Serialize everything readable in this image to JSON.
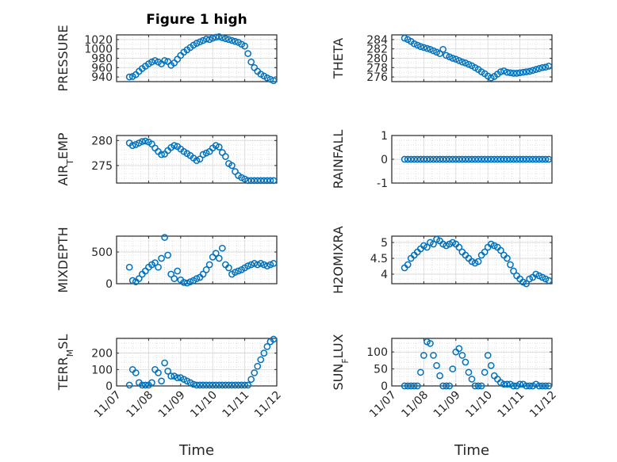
{
  "figure": {
    "title": "Figure 1 high",
    "bg": "#ffffff"
  },
  "style": {
    "marker_color": "#0072bd",
    "axis_color": "#262626",
    "grid_color": "#d9d9d9"
  },
  "chart_data": [
    {
      "type": "scatter",
      "title": "Figure 1 high",
      "ylabel": "PRESSURE",
      "xlabel": "",
      "xlim": [
        0,
        5
      ],
      "ylim": [
        930,
        1030
      ],
      "yticks": [
        940,
        960,
        980,
        1000,
        1020
      ],
      "ytick_labels": [
        "940",
        "960",
        "980",
        "1000",
        "1020"
      ],
      "x": [
        0.4,
        0.5,
        0.6,
        0.7,
        0.8,
        0.9,
        1.0,
        1.1,
        1.2,
        1.3,
        1.4,
        1.5,
        1.6,
        1.7,
        1.8,
        1.9,
        2.0,
        2.1,
        2.2,
        2.3,
        2.4,
        2.5,
        2.6,
        2.7,
        2.8,
        2.9,
        3.0,
        3.1,
        3.2,
        3.3,
        3.4,
        3.5,
        3.6,
        3.7,
        3.8,
        3.9,
        4.0,
        4.1,
        4.2,
        4.3,
        4.4,
        4.5,
        4.6,
        4.7,
        4.8,
        4.9
      ],
      "y": [
        940,
        941,
        945,
        952,
        958,
        963,
        968,
        972,
        975,
        972,
        968,
        975,
        973,
        965,
        970,
        978,
        986,
        993,
        998,
        1003,
        1008,
        1012,
        1015,
        1018,
        1021,
        1020,
        1023,
        1025,
        1026,
        1024,
        1022,
        1020,
        1018,
        1016,
        1014,
        1010,
        1006,
        990,
        972,
        960,
        952,
        946,
        942,
        938,
        935,
        932
      ],
      "grid": true
    },
    {
      "type": "scatter",
      "ylabel": "THETA",
      "xlabel": "",
      "xlim": [
        0,
        5
      ],
      "ylim": [
        275,
        285
      ],
      "yticks": [
        276,
        278,
        280,
        282,
        284
      ],
      "ytick_labels": [
        "276",
        "278",
        "280",
        "282",
        "284"
      ],
      "x": [
        0.4,
        0.5,
        0.6,
        0.7,
        0.8,
        0.9,
        1.0,
        1.1,
        1.2,
        1.3,
        1.4,
        1.5,
        1.6,
        1.7,
        1.8,
        1.9,
        2.0,
        2.1,
        2.2,
        2.3,
        2.4,
        2.5,
        2.6,
        2.7,
        2.8,
        2.9,
        3.0,
        3.1,
        3.2,
        3.3,
        3.4,
        3.5,
        3.6,
        3.7,
        3.8,
        3.9,
        4.0,
        4.1,
        4.2,
        4.3,
        4.4,
        4.5,
        4.6,
        4.7,
        4.8,
        4.9
      ],
      "y": [
        284.3,
        284.0,
        283.6,
        283.1,
        282.8,
        282.5,
        282.3,
        282.1,
        281.9,
        281.6,
        281.3,
        281.0,
        281.9,
        280.6,
        280.3,
        280.0,
        279.8,
        279.5,
        279.2,
        279.0,
        278.7,
        278.4,
        278.0,
        277.6,
        277.1,
        276.7,
        276.2,
        275.8,
        276.1,
        276.6,
        277.1,
        277.3,
        277.0,
        276.9,
        276.8,
        276.8,
        276.9,
        277.0,
        277.1,
        277.2,
        277.4,
        277.6,
        277.8,
        278.0,
        278.1,
        278.3
      ],
      "grid": true
    },
    {
      "type": "scatter",
      "ylabel": "AIR_T_EMP",
      "xlabel": "",
      "xlim": [
        0,
        5
      ],
      "ylim": [
        271.5,
        281
      ],
      "yticks": [
        275,
        280
      ],
      "ytick_labels": [
        "275",
        "280"
      ],
      "x": [
        0.4,
        0.5,
        0.6,
        0.7,
        0.8,
        0.9,
        1.0,
        1.1,
        1.2,
        1.3,
        1.4,
        1.5,
        1.6,
        1.7,
        1.8,
        1.9,
        2.0,
        2.1,
        2.2,
        2.3,
        2.4,
        2.5,
        2.6,
        2.7,
        2.8,
        2.9,
        3.0,
        3.1,
        3.2,
        3.3,
        3.4,
        3.5,
        3.6,
        3.7,
        3.8,
        3.9,
        4.0,
        4.1,
        4.2,
        4.3,
        4.4,
        4.5,
        4.6,
        4.7,
        4.8,
        4.9
      ],
      "y": [
        279.5,
        279.0,
        279.2,
        279.5,
        279.8,
        279.9,
        279.7,
        279.3,
        278.5,
        277.8,
        277.2,
        277.3,
        278.0,
        278.6,
        279.0,
        278.8,
        278.3,
        277.8,
        277.4,
        277.0,
        276.5,
        276.0,
        276.3,
        277.2,
        277.5,
        277.8,
        278.5,
        279.0,
        278.7,
        277.6,
        276.8,
        275.4,
        275.0,
        273.8,
        273.0,
        272.6,
        272.3,
        272.0,
        272.0,
        272.0,
        272.0,
        272.0,
        272.0,
        272.0,
        272.0,
        272.0
      ],
      "grid": true
    },
    {
      "type": "scatter",
      "ylabel": "RAINFALL",
      "xlabel": "",
      "xlim": [
        0,
        5
      ],
      "ylim": [
        -1,
        1
      ],
      "yticks": [
        -1,
        0,
        1
      ],
      "ytick_labels": [
        "-1",
        "0",
        "1"
      ],
      "x": [
        0.4,
        0.5,
        0.6,
        0.7,
        0.8,
        0.9,
        1.0,
        1.1,
        1.2,
        1.3,
        1.4,
        1.5,
        1.6,
        1.7,
        1.8,
        1.9,
        2.0,
        2.1,
        2.2,
        2.3,
        2.4,
        2.5,
        2.6,
        2.7,
        2.8,
        2.9,
        3.0,
        3.1,
        3.2,
        3.3,
        3.4,
        3.5,
        3.6,
        3.7,
        3.8,
        3.9,
        4.0,
        4.1,
        4.2,
        4.3,
        4.4,
        4.5,
        4.6,
        4.7,
        4.8,
        4.9
      ],
      "y": [
        0,
        0,
        0,
        0,
        0,
        0,
        0,
        0,
        0,
        0,
        0,
        0,
        0,
        0,
        0,
        0,
        0,
        0,
        0,
        0,
        0,
        0,
        0,
        0,
        0,
        0,
        0,
        0,
        0,
        0,
        0,
        0,
        0,
        0,
        0,
        0,
        0,
        0,
        0,
        0,
        0,
        0,
        0,
        0,
        0,
        0
      ],
      "grid": true
    },
    {
      "type": "scatter",
      "ylabel": "MIXDEPTH",
      "xlabel": "",
      "xlim": [
        0,
        5
      ],
      "ylim": [
        0,
        750
      ],
      "yticks": [
        0,
        500
      ],
      "ytick_labels": [
        "0",
        "500"
      ],
      "x": [
        0.4,
        0.5,
        0.6,
        0.7,
        0.8,
        0.9,
        1.0,
        1.1,
        1.2,
        1.3,
        1.4,
        1.5,
        1.6,
        1.7,
        1.8,
        1.9,
        2.0,
        2.1,
        2.2,
        2.3,
        2.4,
        2.5,
        2.6,
        2.7,
        2.8,
        2.9,
        3.0,
        3.1,
        3.2,
        3.3,
        3.4,
        3.5,
        3.6,
        3.7,
        3.8,
        3.9,
        4.0,
        4.1,
        4.2,
        4.3,
        4.4,
        4.5,
        4.6,
        4.7,
        4.8,
        4.9
      ],
      "y": [
        260,
        50,
        30,
        80,
        150,
        200,
        260,
        300,
        330,
        260,
        400,
        730,
        450,
        150,
        80,
        200,
        60,
        20,
        10,
        30,
        50,
        80,
        100,
        150,
        220,
        300,
        420,
        480,
        400,
        560,
        300,
        250,
        150,
        180,
        200,
        220,
        250,
        280,
        300,
        320,
        300,
        320,
        300,
        280,
        300,
        320
      ],
      "grid": true
    },
    {
      "type": "scatter",
      "ylabel": "H2OMIXRA",
      "xlabel": "",
      "xlim": [
        0,
        5
      ],
      "ylim": [
        3.7,
        5.2
      ],
      "yticks": [
        4,
        4.5,
        5
      ],
      "ytick_labels": [
        "4",
        "4.5",
        "5"
      ],
      "x": [
        0.4,
        0.5,
        0.6,
        0.7,
        0.8,
        0.9,
        1.0,
        1.1,
        1.2,
        1.3,
        1.4,
        1.5,
        1.6,
        1.7,
        1.8,
        1.9,
        2.0,
        2.1,
        2.2,
        2.3,
        2.4,
        2.5,
        2.6,
        2.7,
        2.8,
        2.9,
        3.0,
        3.1,
        3.2,
        3.3,
        3.4,
        3.5,
        3.6,
        3.7,
        3.8,
        3.9,
        4.0,
        4.1,
        4.2,
        4.3,
        4.4,
        4.5,
        4.6,
        4.7,
        4.8,
        4.9
      ],
      "y": [
        4.2,
        4.3,
        4.5,
        4.6,
        4.7,
        4.8,
        4.9,
        4.85,
        5.0,
        4.95,
        5.1,
        5.05,
        4.95,
        4.9,
        4.95,
        5.0,
        4.95,
        4.85,
        4.7,
        4.6,
        4.5,
        4.4,
        4.35,
        4.4,
        4.6,
        4.7,
        4.85,
        4.95,
        4.9,
        4.85,
        4.75,
        4.6,
        4.5,
        4.3,
        4.1,
        3.95,
        3.85,
        3.75,
        3.7,
        3.85,
        3.9,
        4.0,
        3.95,
        3.9,
        3.85,
        3.8
      ],
      "grid": true
    },
    {
      "type": "scatter",
      "ylabel": "TERR_M_SL",
      "xlabel": "Time",
      "xlim": [
        0,
        5
      ],
      "ylim": [
        0,
        290
      ],
      "yticks": [
        0,
        100,
        200
      ],
      "ytick_labels": [
        "0",
        "100",
        "200"
      ],
      "xticks": [
        0,
        1,
        2,
        3,
        4,
        5
      ],
      "xtick_labels": [
        "11/07",
        "11/08",
        "11/09",
        "11/10",
        "11/11",
        "11/12"
      ],
      "x": [
        0.4,
        0.5,
        0.6,
        0.7,
        0.8,
        0.9,
        1.0,
        1.1,
        1.2,
        1.3,
        1.4,
        1.5,
        1.6,
        1.7,
        1.8,
        1.9,
        2.0,
        2.1,
        2.2,
        2.3,
        2.4,
        2.5,
        2.6,
        2.7,
        2.8,
        2.9,
        3.0,
        3.1,
        3.2,
        3.3,
        3.4,
        3.5,
        3.6,
        3.7,
        3.8,
        3.9,
        4.0,
        4.1,
        4.2,
        4.3,
        4.4,
        4.5,
        4.6,
        4.7,
        4.8,
        4.9
      ],
      "y": [
        5,
        100,
        80,
        20,
        5,
        5,
        5,
        20,
        100,
        80,
        30,
        140,
        90,
        60,
        60,
        50,
        50,
        40,
        30,
        20,
        10,
        5,
        5,
        5,
        5,
        5,
        5,
        5,
        5,
        5,
        5,
        5,
        5,
        5,
        5,
        5,
        5,
        5,
        40,
        80,
        120,
        160,
        200,
        240,
        270,
        285
      ],
      "grid": true
    },
    {
      "type": "scatter",
      "ylabel": "SUN_F_LUX",
      "xlabel": "Time",
      "xlim": [
        0,
        5
      ],
      "ylim": [
        0,
        140
      ],
      "yticks": [
        0,
        50,
        100
      ],
      "ytick_labels": [
        "0",
        "50",
        "100"
      ],
      "xticks": [
        0,
        1,
        2,
        3,
        4,
        5
      ],
      "xtick_labels": [
        "11/07",
        "11/08",
        "11/09",
        "11/10",
        "11/11",
        "11/12"
      ],
      "x": [
        0.4,
        0.5,
        0.6,
        0.7,
        0.8,
        0.9,
        1.0,
        1.1,
        1.2,
        1.3,
        1.4,
        1.5,
        1.6,
        1.7,
        1.8,
        1.9,
        2.0,
        2.1,
        2.2,
        2.3,
        2.4,
        2.5,
        2.6,
        2.7,
        2.8,
        2.9,
        3.0,
        3.1,
        3.2,
        3.3,
        3.4,
        3.5,
        3.6,
        3.7,
        3.8,
        3.9,
        4.0,
        4.1,
        4.2,
        4.3,
        4.4,
        4.5,
        4.6,
        4.7,
        4.8,
        4.9
      ],
      "y": [
        0,
        0,
        0,
        0,
        0,
        40,
        90,
        130,
        125,
        90,
        60,
        30,
        0,
        0,
        0,
        50,
        100,
        110,
        90,
        70,
        40,
        20,
        0,
        0,
        0,
        40,
        90,
        60,
        30,
        20,
        10,
        5,
        5,
        5,
        0,
        0,
        5,
        5,
        0,
        0,
        0,
        5,
        0,
        0,
        0,
        0
      ],
      "grid": true
    }
  ]
}
